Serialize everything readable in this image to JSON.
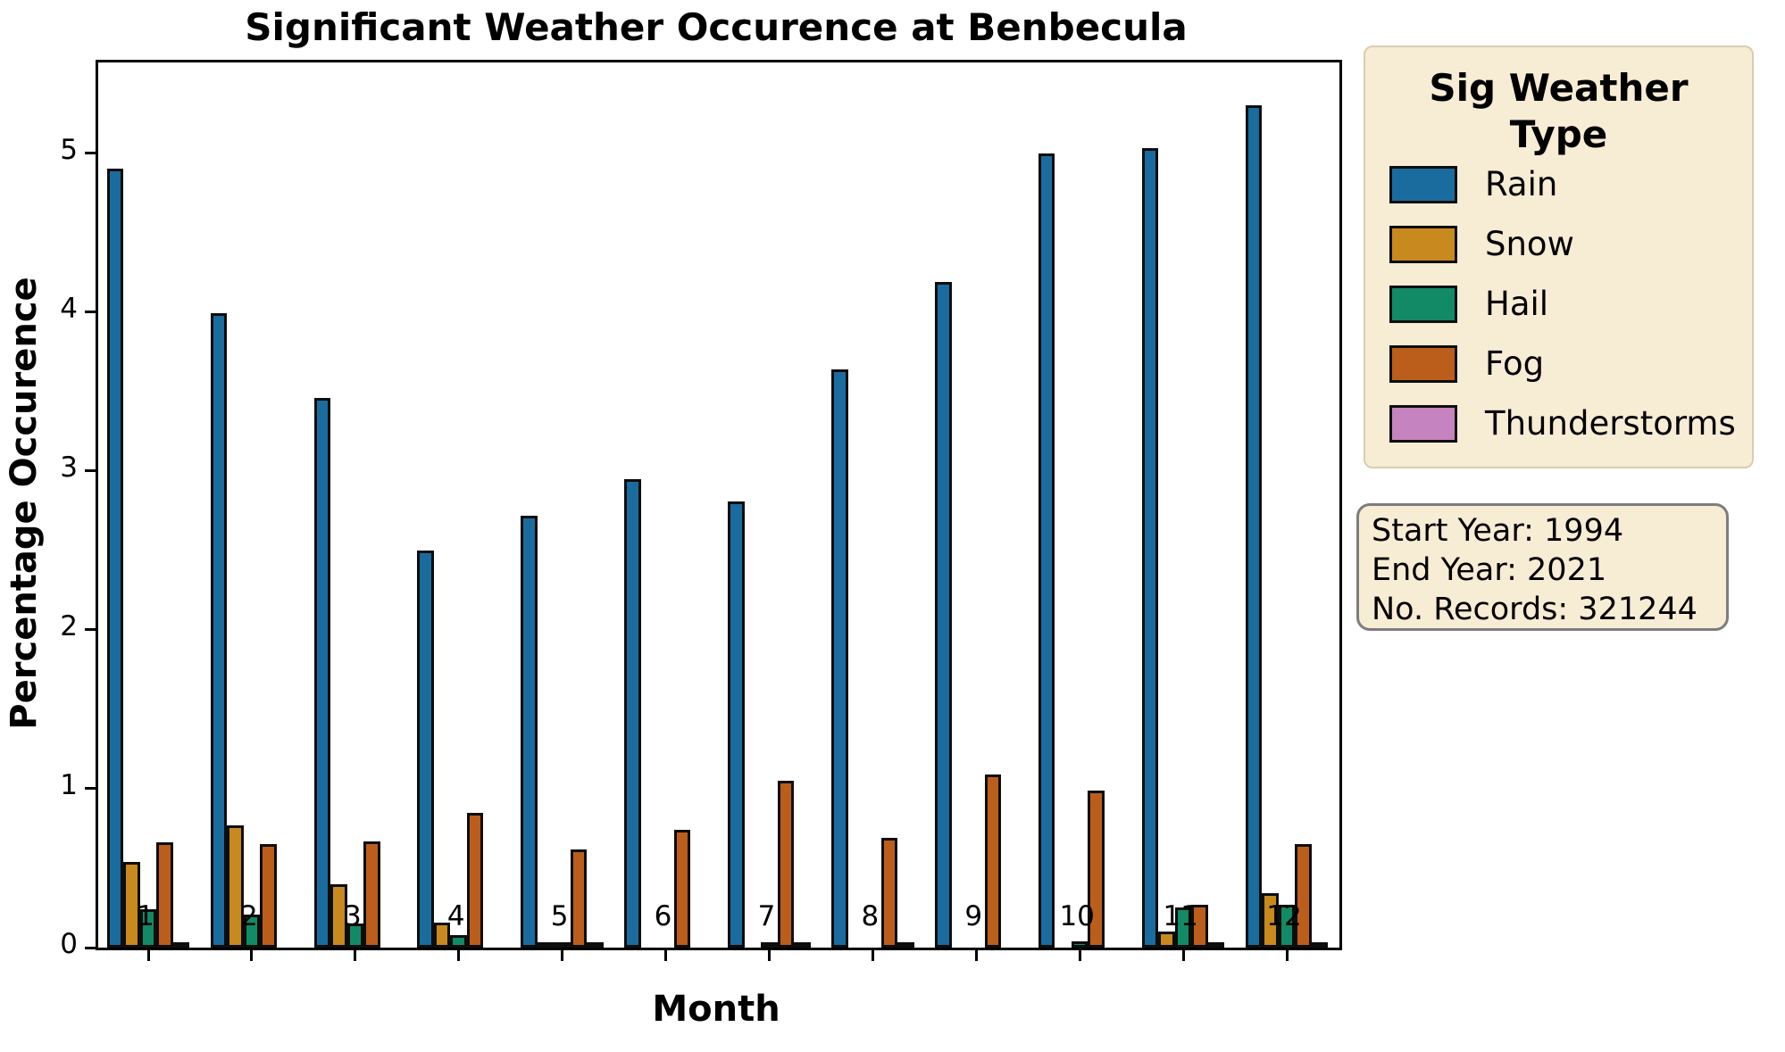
{
  "title": "Significant Weather Occurence at Benbecula",
  "axes": {
    "x_label": "Month",
    "y_label": "Percentage Occurence",
    "y_ticks": [
      "0",
      "1",
      "2",
      "3",
      "4",
      "5"
    ],
    "x_ticks": [
      "1",
      "2",
      "3",
      "4",
      "5",
      "6",
      "7",
      "8",
      "9",
      "10",
      "11",
      "12"
    ]
  },
  "legend": {
    "title_line1": "Sig Weather",
    "title_line2": "Type",
    "items": [
      {
        "label": "Rain",
        "color": "#1a6c9e"
      },
      {
        "label": "Snow",
        "color": "#c8891e"
      },
      {
        "label": "Hail",
        "color": "#128a66"
      },
      {
        "label": "Fog",
        "color": "#bb5e1c"
      },
      {
        "label": "Thunderstorms",
        "color": "#c583c0"
      }
    ]
  },
  "info_box": {
    "lines": [
      "Start Year: 1994",
      "End Year: 2021",
      "No. Records: 321244"
    ]
  },
  "chart_data": {
    "type": "bar",
    "title": "Significant Weather Occurence at Benbecula",
    "xlabel": "Month",
    "ylabel": "Percentage Occurence",
    "categories": [
      1,
      2,
      3,
      4,
      5,
      6,
      7,
      8,
      9,
      10,
      11,
      12
    ],
    "ylim": [
      0,
      5.57
    ],
    "grid": false,
    "legend_position": "right",
    "series": [
      {
        "name": "Rain",
        "color": "#1a6c9e",
        "values": [
          4.9,
          3.99,
          3.46,
          2.5,
          2.72,
          2.95,
          2.81,
          3.64,
          4.19,
          5.0,
          5.03,
          5.3
        ]
      },
      {
        "name": "Snow",
        "color": "#c8891e",
        "values": [
          0.54,
          0.77,
          0.4,
          0.16,
          0.01,
          0,
          0,
          0,
          0,
          0,
          0.1,
          0.34
        ]
      },
      {
        "name": "Hail",
        "color": "#128a66",
        "values": [
          0.24,
          0.21,
          0.15,
          0.08,
          0.02,
          0,
          0.01,
          0,
          0,
          0.04,
          0.25,
          0.27
        ]
      },
      {
        "name": "Fog",
        "color": "#bb5e1c",
        "values": [
          0.66,
          0.65,
          0.67,
          0.85,
          0.62,
          0.74,
          1.05,
          0.69,
          1.09,
          0.99,
          0.27,
          0.65
        ]
      },
      {
        "name": "Thunderstorms",
        "color": "#c583c0",
        "values": [
          0.02,
          0,
          0,
          0,
          0.01,
          0,
          0.01,
          0.01,
          0,
          0,
          0.01,
          0.03
        ]
      }
    ]
  }
}
